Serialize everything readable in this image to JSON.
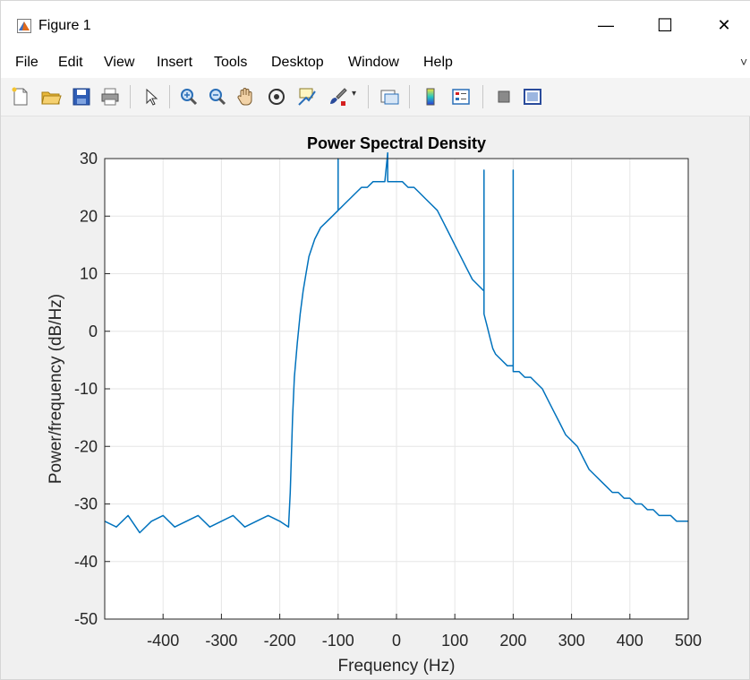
{
  "window": {
    "title": "Figure 1",
    "minimize_glyph": "—",
    "maximize_glyph": "☐",
    "close_glyph": "✕"
  },
  "menu": {
    "items": [
      "File",
      "Edit",
      "View",
      "Insert",
      "Tools",
      "Desktop",
      "Window",
      "Help"
    ]
  },
  "toolbar": {
    "icons": [
      "new-figure-icon",
      "open-file-icon",
      "save-icon",
      "print-icon",
      "select-arrow-icon",
      "zoom-in-icon",
      "zoom-out-icon",
      "pan-hand-icon",
      "rotate-3d-icon",
      "data-cursor-icon",
      "brush-icon",
      "link-plot-icon",
      "colorbar-icon",
      "legend-icon",
      "hide-plot-tools-icon",
      "show-plot-tools-icon"
    ]
  },
  "colors": {
    "line": "#0072BD",
    "grid": "#e6e6e6",
    "axes_bg": "#ffffff",
    "figure_bg": "#f0f0f0"
  },
  "chart_data": {
    "type": "line",
    "title": "Power Spectral Density",
    "xlabel": "Frequency (Hz)",
    "ylabel": "Power/frequency (dB/Hz)",
    "xlim": [
      -500,
      500
    ],
    "ylim": [
      -50,
      30
    ],
    "xticks": [
      -400,
      -300,
      -200,
      -100,
      0,
      100,
      200,
      300,
      400,
      500
    ],
    "yticks": [
      30,
      20,
      10,
      0,
      -10,
      -20,
      -30,
      -40,
      -50
    ],
    "grid": true,
    "series": [
      {
        "x": [
          -500,
          -480,
          -460,
          -440,
          -420,
          -400,
          -380,
          -360,
          -340,
          -320,
          -300,
          -280,
          -260,
          -240,
          -220,
          -200,
          -185,
          -182,
          -178,
          -175,
          -170,
          -165,
          -160,
          -155,
          -150,
          -140,
          -130,
          -120,
          -110,
          -100,
          -100,
          -100,
          -90,
          -80,
          -70,
          -60,
          -50,
          -40,
          -30,
          -20,
          -15,
          -15,
          -15,
          -10,
          0,
          10,
          20,
          30,
          40,
          50,
          60,
          70,
          80,
          90,
          100,
          110,
          120,
          130,
          140,
          150,
          150,
          150,
          155,
          160,
          165,
          170,
          180,
          190,
          200,
          200,
          200,
          210,
          220,
          230,
          240,
          250,
          260,
          270,
          280,
          290,
          300,
          310,
          320,
          330,
          340,
          350,
          360,
          370,
          380,
          390,
          400,
          410,
          420,
          430,
          440,
          450,
          460,
          470,
          480,
          490,
          500
        ],
        "y": [
          -33,
          -34,
          -32,
          -35,
          -33,
          -32,
          -34,
          -33,
          -32,
          -34,
          -33,
          -32,
          -34,
          -33,
          -32,
          -33,
          -34,
          -28,
          -15,
          -8,
          -2,
          3,
          7,
          10,
          13,
          16,
          18,
          19,
          20,
          21,
          30,
          21,
          22,
          23,
          24,
          25,
          25,
          26,
          26,
          26,
          31,
          26,
          26,
          26,
          26,
          26,
          25,
          25,
          24,
          23,
          22,
          21,
          19,
          17,
          15,
          13,
          11,
          9,
          8,
          7,
          28,
          3,
          1,
          -1,
          -3,
          -4,
          -5,
          -6,
          -6,
          28,
          -7,
          -7,
          -8,
          -8,
          -9,
          -10,
          -12,
          -14,
          -16,
          -18,
          -19,
          -20,
          -22,
          -24,
          -25,
          -26,
          -27,
          -28,
          -28,
          -29,
          -29,
          -30,
          -30,
          -31,
          -31,
          -32,
          -32,
          -32,
          -33,
          -33,
          -33
        ]
      }
    ]
  }
}
